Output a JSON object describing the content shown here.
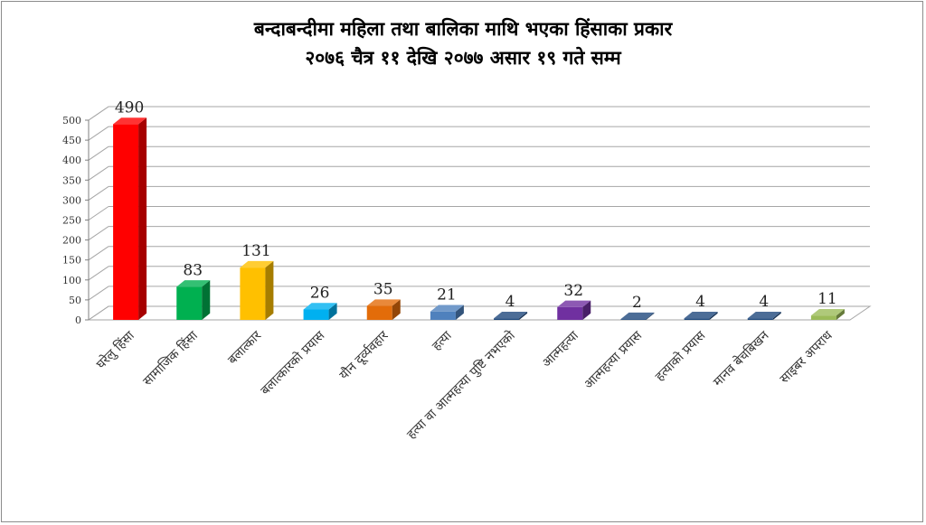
{
  "chart_data": {
    "type": "bar",
    "title": "बन्दाबन्दीमा महिला तथा बालिका माथि भएका हिंसाका प्रकार",
    "subtitle": "२०७६ चैत्र ११ देखि २०७७ असार १९ गते सम्म",
    "categories": [
      "घरेलु हिंसा",
      "सामाजिक हिंसा",
      "बलात्कार",
      "बलात्कारको प्रयास",
      "यौन दूर्व्यवहार",
      "हत्या",
      "हत्या वा आत्महत्या पुष्टि नभएको",
      "आत्महत्या",
      "आत्महत्या प्रयास",
      "हत्याको प्रयास",
      "मानव बेचबिखन",
      "साइबर अपराध"
    ],
    "values": [
      490,
      83,
      131,
      26,
      35,
      21,
      4,
      32,
      2,
      4,
      4,
      11
    ],
    "data_labels": [
      "490",
      "83",
      "131",
      "26",
      "35",
      "21",
      "4",
      "32",
      "2",
      "4",
      "4",
      "11"
    ],
    "yticks": [
      "0",
      "50",
      "100",
      "150",
      "200",
      "250",
      "300",
      "350",
      "400",
      "450",
      "500"
    ],
    "ylim": [
      0,
      500
    ],
    "grid": true,
    "legend": "none",
    "colors": [
      "#ff0000",
      "#00b050",
      "#ffc000",
      "#00b0f0",
      "#e36c09",
      "#4f81bd",
      "#1f497d",
      "#7030a0",
      "#1f497d",
      "#1f497d",
      "#1f497d",
      "#9bbb59"
    ]
  }
}
